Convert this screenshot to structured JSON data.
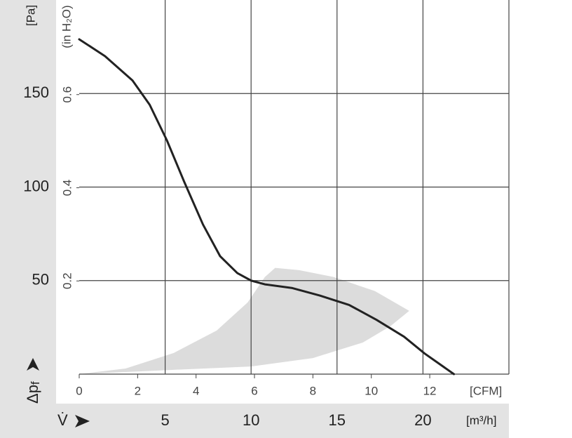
{
  "chart_data": {
    "type": "line",
    "x_label": "V̇",
    "x_unit": "[m³/h]",
    "x2_unit": "[CFM]",
    "y_label": "Δp",
    "y_label_sub": "f",
    "y_unit": "[Pa]",
    "y2_unit": "(in H₂O)",
    "xlim": [
      0,
      25
    ],
    "xticks": [
      5,
      10,
      15,
      20
    ],
    "x2lim": [
      0,
      14.71
    ],
    "x2ticks": [
      0,
      2,
      4,
      6,
      8,
      10,
      12
    ],
    "ylim": [
      0,
      200
    ],
    "yticks": [
      50,
      100,
      150
    ],
    "y2lim": [
      0,
      0.803
    ],
    "y2ticks": [
      0.2,
      0.4,
      0.6
    ],
    "grid": true,
    "series": [
      {
        "color": "#222222",
        "x": [
          0,
          1.5,
          3.1,
          4.1,
          5.1,
          6.1,
          7.2,
          8.2,
          9.2,
          10,
          10.8,
          12.4,
          14,
          15.7,
          17.3,
          18.9,
          20.1,
          21.8
        ],
        "values": [
          179,
          170,
          157,
          144,
          125,
          103,
          80,
          63,
          54,
          50,
          48,
          46,
          42,
          37,
          29,
          20,
          11,
          0
        ]
      }
    ],
    "region": {
      "color": "#dcdcdc",
      "x": [
        0,
        5.5,
        10,
        13.6,
        16.5,
        18.1,
        19.2,
        17.2,
        14.8,
        12.8,
        11.4,
        10.8,
        9.8,
        8.0,
        5.5,
        2.7
      ],
      "y": [
        0,
        2.3,
        4.1,
        8.6,
        16.9,
        25.6,
        33.8,
        44.4,
        51.9,
        55.6,
        56.8,
        51.9,
        38.3,
        23.3,
        11.3,
        3.0
      ]
    }
  }
}
